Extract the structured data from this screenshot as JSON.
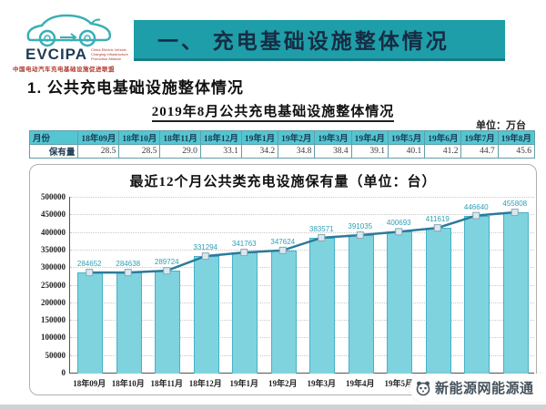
{
  "logo": {
    "brand": "EVCIPA",
    "english_lines": [
      "China Electric Vehicle",
      "Charging Infrastructure",
      "Promotion Alliance"
    ],
    "chinese": "中国电动汽车充电基础设施促进联盟"
  },
  "banner": {
    "title": "一、 充电基础设施整体情况",
    "bg_color": "#1e9ea8",
    "text_color": "#162c44"
  },
  "page": {
    "section_heading": "1. 公共充电基础设施整体情况"
  },
  "table_section": {
    "title": "2019年8月公共充电基础设施整体情况",
    "unit": "单位：万台",
    "row_header": "月份",
    "value_header": "保有量",
    "columns": [
      "18年09月",
      "18年10月",
      "18年11月",
      "18年12月",
      "19年1月",
      "19年2月",
      "19年3月",
      "19年4月",
      "19年5月",
      "19年6月",
      "19年7月",
      "19年8月"
    ],
    "values": [
      "28.5",
      "28.5",
      "29.0",
      "33.1",
      "34.2",
      "34.8",
      "38.4",
      "39.1",
      "40.1",
      "41.2",
      "44.7",
      "45.6"
    ],
    "header_bg": "#54c6d2"
  },
  "chart_data": {
    "type": "bar",
    "title": "最近12个月公共类充电设施保有量（单位：台）",
    "categories": [
      "18年09月",
      "18年10月",
      "18年11月",
      "18年12月",
      "19年1月",
      "19年2月",
      "19年3月",
      "19年4月",
      "19年5月",
      "19年6月",
      "19年7月",
      "19年8月"
    ],
    "values": [
      284652,
      284638,
      289724,
      331294,
      341763,
      347624,
      383571,
      391035,
      400693,
      411619,
      446640,
      455808
    ],
    "ylim": [
      0,
      500000
    ],
    "ytick_step": 50000,
    "grid": true,
    "legend": "none",
    "combo_line_over_bars": true,
    "bar_color": "#7fd3df",
    "bar_border_color": "#45b2c6",
    "line_color": "#2c7a9b",
    "marker_fill": "#d9e9ef",
    "marker_border": "#8aa6b2",
    "data_label_color": "#2fa0b6"
  },
  "watermark": {
    "text": "新能源网能源通"
  }
}
